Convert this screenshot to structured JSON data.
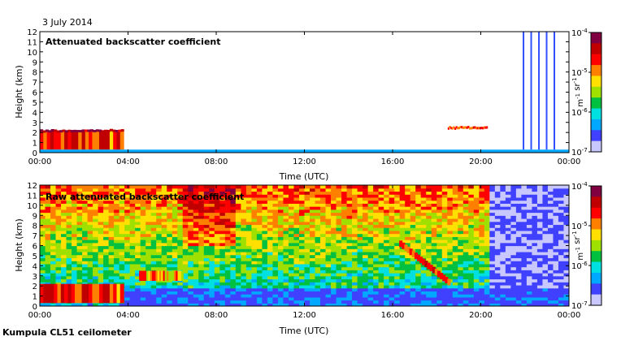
{
  "date_label": "3 July 2014",
  "footer_label": "Kumpula CL51 ceilometer",
  "colorbar_colors": [
    "#c8c8ff",
    "#4040ff",
    "#00a8ff",
    "#00e0e0",
    "#00c040",
    "#a0e000",
    "#ffe000",
    "#ff8000",
    "#ff0000",
    "#c00000",
    "#800040"
  ],
  "chart_data": [
    {
      "type": "heatmap",
      "title": "Attenuated backscatter coefficient",
      "xlabel": "Time (UTC)",
      "ylabel": "Height (km)",
      "x_ticks": [
        "00:00",
        "04:00",
        "08:00",
        "12:00",
        "16:00",
        "20:00",
        "00:00"
      ],
      "y_ticks": [
        "0",
        "1",
        "2",
        "3",
        "4",
        "5",
        "6",
        "7",
        "8",
        "9",
        "10",
        "11",
        "12"
      ],
      "ylim": [
        0,
        12
      ],
      "xlim_hours": [
        0,
        24
      ],
      "colorbar": {
        "ticks": [
          "10^-4",
          "10^-5",
          "10^-6",
          "10^-7"
        ],
        "label": "m^-1 sr^-1",
        "scale": "log"
      },
      "features": [
        {
          "kind": "boundary_layer",
          "x_hours": [
            0,
            3.8
          ],
          "height_km": [
            0.3,
            2.2
          ],
          "level": 0.75
        },
        {
          "kind": "cloud_top",
          "x_hours": [
            0,
            3.8
          ],
          "height_km": 2.2,
          "level": 1.0
        },
        {
          "kind": "surface_layer",
          "x_hours": [
            0,
            24
          ],
          "height_km": [
            0,
            0.3
          ],
          "level": 0.2
        },
        {
          "kind": "cloud",
          "x_hours": [
            18.5,
            20.3
          ],
          "height_km": 2.5,
          "level": 0.85
        },
        {
          "kind": "virga",
          "x_hours": [
            21.9,
            23.3
          ],
          "height_km": [
            0.3,
            12
          ],
          "level": 0.15
        }
      ]
    },
    {
      "type": "heatmap",
      "title": "Raw attenuated backscatter coefficient",
      "xlabel": "Time (UTC)",
      "ylabel": "Height (km)",
      "x_ticks": [
        "00:00",
        "04:00",
        "08:00",
        "12:00",
        "16:00",
        "20:00",
        "00:00"
      ],
      "y_ticks": [
        "0",
        "1",
        "2",
        "3",
        "4",
        "5",
        "6",
        "7",
        "8",
        "9",
        "10",
        "11",
        "12"
      ],
      "ylim": [
        0,
        12
      ],
      "xlim_hours": [
        0,
        24
      ],
      "colorbar": {
        "ticks": [
          "10^-4",
          "10^-5",
          "10^-6",
          "10^-7"
        ],
        "label": "m^-1 sr^-1",
        "scale": "log"
      },
      "features": [
        {
          "kind": "noise_field",
          "x_hours": [
            0,
            24
          ],
          "height_km": [
            0,
            12
          ]
        },
        {
          "kind": "boundary_layer",
          "x_hours": [
            0,
            3.8
          ],
          "height_km": [
            0.3,
            2.2
          ],
          "level": 0.75
        },
        {
          "kind": "residual_layer",
          "x_hours": [
            4.5,
            6.5
          ],
          "height_km": [
            2.5,
            3.5
          ],
          "level": 0.65
        },
        {
          "kind": "descending_layer",
          "x_hours": [
            16.3,
            18.6
          ],
          "height_km": [
            2.5,
            6.5
          ],
          "level": 0.7
        },
        {
          "kind": "clearing",
          "x_hours": [
            20.5,
            24
          ],
          "height_km": [
            0,
            12
          ],
          "level": 0.05
        }
      ]
    }
  ]
}
